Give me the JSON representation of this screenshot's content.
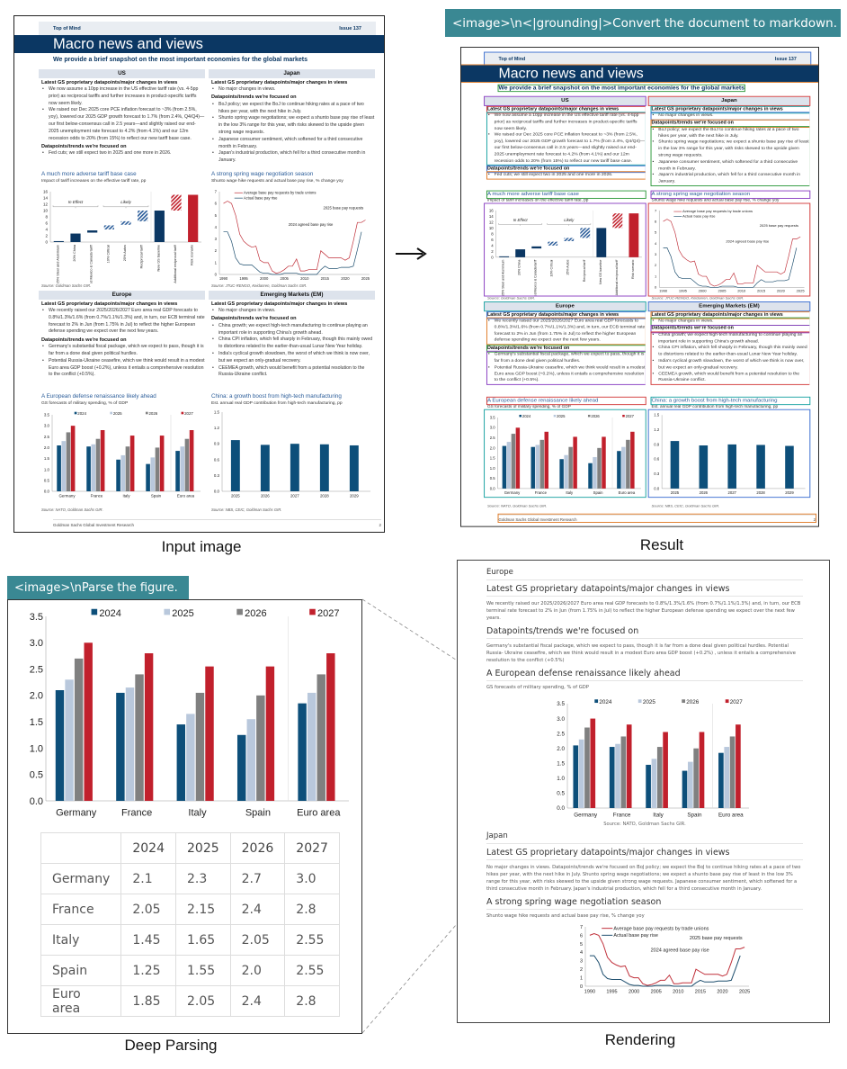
{
  "prompts": {
    "grounding": "<image>\\n<|grounding|>Convert the document to markdown.",
    "parse": "<image>\\nParse the figure."
  },
  "captions": {
    "input": "Input image",
    "result": "Result",
    "deep_parsing": "Deep Parsing",
    "rendering": "Rendering"
  },
  "doc": {
    "header_left": "Top of Mind",
    "header_right": "Issue 137",
    "title": "Macro news and views",
    "subtitle": "We provide a brief snapshot on the most important economies for the global markets",
    "footer_left": "Goldman Sachs Global Investment Research",
    "footer_page": "2",
    "us": {
      "heading": "US",
      "latest_label": "Latest GS proprietary datapoints/major changes in views",
      "latest": [
        "We now assume a 10pp increase in the US effective tariff rate (vs. 4-5pp prior) as reciprocal tariffs and further increases in product-specific tariffs now seem likely.",
        "We raised our Dec 2025 core PCE inflation forecast to ~3% (from 2.5%, yoy), lowered our 2025 GDP growth forecast to 1.7% (from 2.4%, Q4/Q4)—our first below-consensus call in 2.5 years—and slightly raised our end-2025 unemployment rate forecast to 4.2% (from 4.1%) and our 12m recession odds to 20% (from 15%) to reflect our new tariff base case."
      ],
      "focus_label": "Datapoints/trends we're focused on",
      "focus": [
        "Fed cuts; we still expect two in 2025 and one more in 2026."
      ],
      "chart_title": "A much more adverse tariff base case",
      "chart_subtitle": "Impact of tariff increases on the effective tariff rate, pp",
      "source": "Source: Goldman Sachs GIR."
    },
    "japan": {
      "heading": "Japan",
      "latest_label": "Latest GS proprietary datapoints/major changes in views",
      "latest": [
        "No major changes in views."
      ],
      "focus_label": "Datapoints/trends we're focused on",
      "focus": [
        "BoJ policy; we expect the BoJ to continue hiking rates at a pace of two hikes per year, with the next hike in July.",
        "Shunto spring wage negotiations; we expect a shunto base pay rise of least in the low 3% range for this year, with risks skewed to the upside given strong wage requests.",
        "Japanese consumer sentiment, which softened for a third consecutive month in February.",
        "Japan's industrial production, which fell for a third consecutive month in January."
      ],
      "chart_title": "A strong spring wage negotiation season",
      "chart_subtitle": "Shunto wage hike requests and actual base pay rise, % change yoy",
      "source": "Source: JTUC-RENGO, Keidanren, Goldman Sachs GIR."
    },
    "europe": {
      "heading": "Europe",
      "latest_label": "Latest GS proprietary datapoints/major changes in views",
      "latest": [
        "We recently raised our 2025/2026/2027 Euro area real GDP forecasts to 0.8%/1.3%/1.6% (from 0.7%/1.1%/1.3%) and, in turn, our ECB terminal rate forecast to 2% in Jun (from 1.75% in Jul) to reflect the higher European defense spending we expect over the next few years."
      ],
      "focus_label": "Datapoints/trends we're focused on",
      "focus": [
        "Germany's substantial fiscal package, which we expect to pass, though it is far from a done deal given political hurdles.",
        "Potential Russia-Ukraine ceasefire, which we think would result in a modest Euro area GDP boost (+0.2%), unless it entails a comprehensive resolution to the conflict (+0.5%)."
      ],
      "chart_title": "A European defense renaissance likely ahead",
      "chart_subtitle": "GS forecasts of military spending, % of GDP",
      "source": "Source: NATO, Goldman Sachs GIR."
    },
    "em": {
      "heading": "Emerging Markets (EM)",
      "latest_label": "Latest GS proprietary datapoints/major changes in views",
      "latest": [
        "No major changes in views."
      ],
      "focus_label": "Datapoints/trends we're focused on",
      "focus": [
        "China growth; we expect high-tech manufacturing to continue playing an important role in supporting China's growth ahead.",
        "China CPI inflation, which fell sharply in February, though this mainly owed to distortions related to the earlier-than-usual Lunar New Year holiday.",
        "India's cyclical growth slowdown, the worst of which we think is now over, but we expect an only-gradual recovery.",
        "CEEMEA growth, which would benefit from a potential resolution to the Russia-Ukraine conflict."
      ],
      "chart_title": "China: a growth boost from high-tech manufacturing",
      "chart_subtitle": "Est. annual real GDP contribution from high-tech manufacturing, pp",
      "source": "Source: NBS, CEIC, Goldman Sachs GIR."
    }
  },
  "chart_data": [
    {
      "type": "bar",
      "categories": [
        "25% Steel and Aluminium",
        "20% China",
        "Limited Mexico & Canada tariff",
        "10% Critical",
        "25% Autos",
        "Reciprocal tariff",
        "New GS baseline",
        "Additional reciprocal tariff",
        "Risk scenario"
      ],
      "ranges": [
        [
          0,
          0.3
        ],
        [
          0,
          2.7
        ],
        [
          3,
          3.7
        ],
        [
          4,
          5.3
        ],
        [
          5.5,
          6.6
        ],
        [
          6.6,
          10
        ],
        [
          0,
          10
        ],
        [
          10,
          15
        ],
        [
          0,
          15
        ]
      ],
      "styles": [
        "solid-navy",
        "solid-navy",
        "solid-navy",
        "hatched-navy",
        "hatched-navy",
        "hatched-navy",
        "solid-navy",
        "hatched-red",
        "solid-red"
      ],
      "annotations": [
        "In Effect",
        "Likely"
      ],
      "ylim": [
        0,
        16
      ],
      "yticks": [
        0,
        2,
        4,
        6,
        8,
        10,
        12,
        14,
        16
      ]
    },
    {
      "type": "line",
      "x": [
        1990,
        1991,
        1992,
        1993,
        1994,
        1995,
        1996,
        1997,
        1998,
        1999,
        2000,
        2001,
        2002,
        2003,
        2004,
        2005,
        2006,
        2007,
        2008,
        2009,
        2010,
        2011,
        2012,
        2013,
        2014,
        2015,
        2016,
        2017,
        2018,
        2019,
        2020,
        2021,
        2022,
        2023,
        2024,
        2025
      ],
      "series": [
        {
          "name": "Average base pay requests by trade unions",
          "color": "#c0303a",
          "values": [
            6.0,
            6.2,
            6.0,
            5.0,
            3.4,
            2.8,
            2.5,
            2.3,
            2.4,
            1.2,
            1.0,
            1.0,
            0.3,
            0.1,
            0.2,
            0.4,
            0.7,
            0.7,
            1.3,
            0.3,
            0.3,
            0.4,
            0.4,
            0.4,
            2.0,
            1.7,
            1.4,
            1.4,
            1.4,
            1.4,
            1.2,
            1.4,
            2.8,
            4.4,
            4.4,
            4.6
          ]
        },
        {
          "name": "Actual base pay rise",
          "color": "#1d4e6e",
          "values": [
            3.6,
            3.6,
            2.8,
            1.4,
            0.9,
            0.8,
            0.8,
            0.8,
            0.5,
            0.2,
            0.1,
            0.1,
            0.0,
            0.0,
            0.0,
            0.1,
            0.1,
            0.1,
            0.1,
            0.0,
            0.0,
            0.0,
            0.0,
            0.0,
            0.4,
            0.7,
            0.5,
            0.5,
            0.5,
            0.6,
            0.6,
            0.6,
            0.7,
            2.1,
            3.6,
            null
          ]
        }
      ],
      "annotations": [
        "2025 base pay requests",
        "2024 agreed base pay rise"
      ],
      "xticks": [
        1990,
        1995,
        2000,
        2005,
        2010,
        2015,
        2020,
        2025
      ],
      "ylim": [
        0,
        7
      ],
      "yticks": [
        0,
        1,
        2,
        3,
        4,
        5,
        6,
        7
      ]
    },
    {
      "type": "bar",
      "categories": [
        "Germany",
        "France",
        "Italy",
        "Spain",
        "Euro area"
      ],
      "series": [
        {
          "name": "2024",
          "color": "#0d4f7a",
          "values": [
            2.1,
            2.05,
            1.45,
            1.25,
            1.85
          ]
        },
        {
          "name": "2025",
          "color": "#b9c8dc",
          "values": [
            2.3,
            2.15,
            1.65,
            1.55,
            2.05
          ]
        },
        {
          "name": "2026",
          "color": "#808080",
          "values": [
            2.7,
            2.4,
            2.05,
            2.0,
            2.4
          ]
        },
        {
          "name": "2027",
          "color": "#c1202c",
          "values": [
            3.0,
            2.8,
            2.55,
            2.55,
            2.8
          ]
        }
      ],
      "ylim": [
        0,
        3.5
      ],
      "yticks": [
        "0.0",
        "0.5",
        "1.0",
        "1.5",
        "2.0",
        "2.5",
        "3.0",
        "3.5"
      ]
    },
    {
      "type": "bar",
      "categories": [
        "2025",
        "2026",
        "2027",
        "2028",
        "2029"
      ],
      "values": [
        0.97,
        0.88,
        0.9,
        0.89,
        0.87
      ],
      "color": "#0d4f7a",
      "ylim": [
        0,
        1.5
      ],
      "yticks": [
        "0.0",
        "0.3",
        "0.6",
        "0.9",
        "1.2",
        "1.5"
      ]
    }
  ],
  "deep_table": {
    "headers": [
      "",
      "2024",
      "2025",
      "2026",
      "2027"
    ],
    "rows": [
      [
        "Germany",
        "2.1",
        "2.3",
        "2.7",
        "3.0"
      ],
      [
        "France",
        "2.05",
        "2.15",
        "2.4",
        "2.8"
      ],
      [
        "Italy",
        "1.45",
        "1.65",
        "2.05",
        "2.55"
      ],
      [
        "Spain",
        "1.25",
        "1.55",
        "2.0",
        "2.55"
      ],
      [
        "Euro area",
        "1.85",
        "2.05",
        "2.4",
        "2.8"
      ]
    ]
  },
  "rendering": {
    "europe": "Europe",
    "latest": "Latest GS proprietary datapoints/major changes in views",
    "europe_p1": "We recently raised our 2025/2026/2027 Euro area real GDP forecasts to 0.8%/1.3%/1.6% (from 0.7%/1.1%/1.3%) and, in turn, our ECB terminal rate forecast to 2% in Jun (from 1.75% in Jul) to reflect the higher European defense spending we expect over the next few years.",
    "focus": "Datapoints/trends we're focused on",
    "europe_p2": "Germany's substantial fiscal package, which we expect to pass, though it is far from a done deal given political hurdles. Potential Russia- Ukraine ceasefire, which we think would result in a modest Euro area GDP boost (+0.2%) , unless it entails a comprehensive resolution to the conflict (+0.5%)",
    "chart_title": "A European defense renaissance likely ahead",
    "chart_caption": "GS forecasts of military spending, % of GDP",
    "chart_source": "Source: NATO, Goldman Sachs GIR.",
    "japan": "Japan",
    "japan_p": "No major changes in views. Datapoints/trends we're focused on BoJ policy; we expect the BoJ to continue hiking rates at a pace of two hikes per year, with the next hike in July. Shunto spring wage negotiations; we expect a shunto base pay rise of least in the low 3% range for this year, with risks skewed to the upside given strong wage requests. Japanese consumer sentiment, which softened for a third consecutive month in February. Japan's industrial production, which fell for a third consecutive month in January.",
    "wage_title": "A strong spring wage negotiation season",
    "wage_caption": "Shunto wage hike requests and actual base pay rise, % change yoy"
  }
}
